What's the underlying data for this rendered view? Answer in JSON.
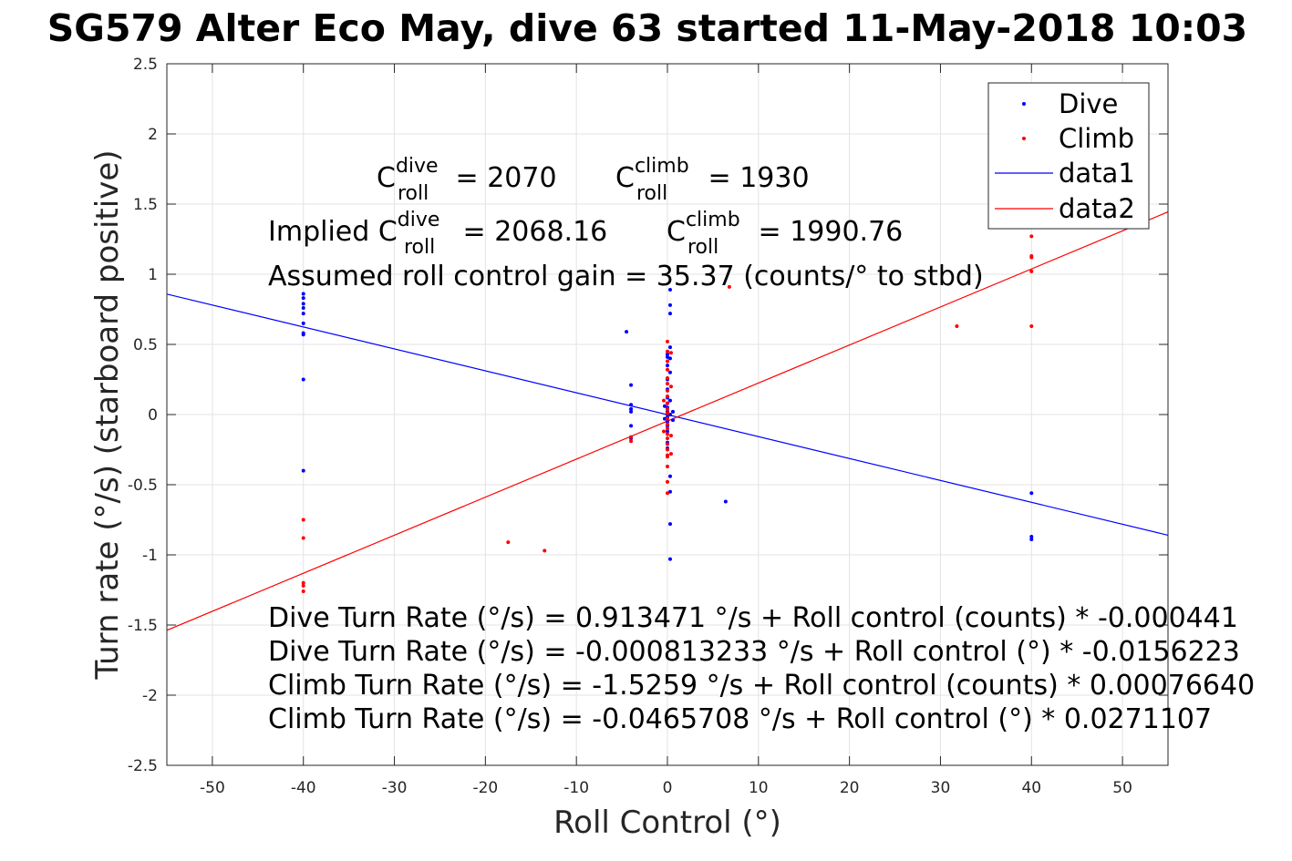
{
  "chart_data": {
    "type": "scatter",
    "title": "SG579 Alter Eco May, dive 63 started 11-May-2018 10:03",
    "xlabel": "Roll Control (°)",
    "ylabel": "Turn rate (°/s) (starboard positive)",
    "xlim": [
      -55,
      55
    ],
    "ylim": [
      -2.5,
      2.5
    ],
    "x_ticks": [
      -50,
      -40,
      -30,
      -20,
      -10,
      0,
      10,
      20,
      30,
      40,
      50
    ],
    "y_ticks": [
      -2.5,
      -2,
      -1.5,
      -1,
      -0.5,
      0,
      0.5,
      1,
      1.5,
      2,
      2.5
    ],
    "x_tick_labels": [
      "-50",
      "-40",
      "-30",
      "-20",
      "-10",
      "0",
      "10",
      "20",
      "30",
      "40",
      "50"
    ],
    "y_tick_labels": [
      "-2.5",
      "-2",
      "-1.5",
      "-1",
      "-0.5",
      "0",
      "0.5",
      "1",
      "1.5",
      "2",
      "2.5"
    ],
    "grid": true,
    "legend_position": "top-right",
    "series": [
      {
        "name": "Dive",
        "kind": "points",
        "color": "#0000ff",
        "points": [
          [
            -40,
            0.86
          ],
          [
            -40,
            0.83
          ],
          [
            -40,
            0.79
          ],
          [
            -40,
            0.76
          ],
          [
            -40,
            0.72
          ],
          [
            -40,
            0.65
          ],
          [
            -40,
            0.58
          ],
          [
            -40,
            0.57
          ],
          [
            -40,
            0.25
          ],
          [
            -40,
            -0.4
          ],
          [
            -4.5,
            0.59
          ],
          [
            -4,
            0.21
          ],
          [
            -4,
            0.07
          ],
          [
            -4,
            0.04
          ],
          [
            -4,
            0.02
          ],
          [
            -4,
            -0.08
          ],
          [
            -4,
            -0.17
          ],
          [
            0,
            0.43
          ],
          [
            0,
            0.41
          ],
          [
            0,
            0.35
          ],
          [
            0,
            0.25
          ],
          [
            0,
            0.18
          ],
          [
            0,
            0.12
          ],
          [
            0,
            0.08
          ],
          [
            0,
            0.05
          ],
          [
            0,
            0.02
          ],
          [
            0,
            0.0
          ],
          [
            0,
            -0.02
          ],
          [
            0,
            -0.05
          ],
          [
            0,
            -0.08
          ],
          [
            0,
            -0.12
          ],
          [
            0,
            -0.2
          ],
          [
            0,
            -0.24
          ],
          [
            0.3,
            0.89
          ],
          [
            0.3,
            0.78
          ],
          [
            0.3,
            0.72
          ],
          [
            0.3,
            0.48
          ],
          [
            0.3,
            0.4
          ],
          [
            0.3,
            0.3
          ],
          [
            0.3,
            0.1
          ],
          [
            0.3,
            0.0
          ],
          [
            0.3,
            -0.44
          ],
          [
            0.3,
            -0.55
          ],
          [
            0.3,
            -0.78
          ],
          [
            0.3,
            -1.03
          ],
          [
            -0.3,
            0.06
          ],
          [
            -0.3,
            -0.03
          ],
          [
            0.6,
            0.02
          ],
          [
            0.6,
            -0.04
          ],
          [
            6.4,
            -0.62
          ],
          [
            40,
            -0.56
          ],
          [
            40,
            -0.87
          ],
          [
            40,
            -0.89
          ]
        ]
      },
      {
        "name": "Climb",
        "kind": "points",
        "color": "#ff0000",
        "points": [
          [
            -40,
            -0.75
          ],
          [
            -40,
            -0.88
          ],
          [
            -40,
            -1.2
          ],
          [
            -40,
            -1.22
          ],
          [
            -40,
            -1.26
          ],
          [
            -17.5,
            -0.91
          ],
          [
            -13.5,
            -0.97
          ],
          [
            -4,
            -0.16
          ],
          [
            -4,
            -0.19
          ],
          [
            0,
            0.52
          ],
          [
            0,
            0.45
          ],
          [
            0,
            0.38
          ],
          [
            0,
            0.32
          ],
          [
            0,
            0.26
          ],
          [
            0,
            0.22
          ],
          [
            0,
            0.17
          ],
          [
            0,
            0.13
          ],
          [
            0,
            0.08
          ],
          [
            0,
            0.04
          ],
          [
            0,
            0.01
          ],
          [
            0,
            -0.03
          ],
          [
            0,
            -0.07
          ],
          [
            0,
            -0.1
          ],
          [
            0,
            -0.14
          ],
          [
            0,
            -0.17
          ],
          [
            0,
            -0.21
          ],
          [
            0,
            -0.25
          ],
          [
            0,
            -0.29
          ],
          [
            0,
            -0.3
          ],
          [
            0,
            -0.37
          ],
          [
            0,
            -0.48
          ],
          [
            0,
            -0.56
          ],
          [
            0.4,
            0.44
          ],
          [
            0.4,
            0.2
          ],
          [
            0.4,
            -0.15
          ],
          [
            0.4,
            -0.28
          ],
          [
            -0.4,
            0.1
          ],
          [
            -0.4,
            -0.12
          ],
          [
            6.8,
            0.91
          ],
          [
            31.8,
            0.63
          ],
          [
            40,
            1.27
          ],
          [
            40,
            1.13
          ],
          [
            40,
            1.12
          ],
          [
            40,
            1.02
          ],
          [
            40,
            0.63
          ]
        ]
      },
      {
        "name": "data1",
        "kind": "line",
        "color": "#0000ff",
        "slope": -0.0156223,
        "intercept": -0.000813233
      },
      {
        "name": "data2",
        "kind": "line",
        "color": "#ff0000",
        "slope": 0.0271107,
        "intercept": -0.0465708
      }
    ],
    "annotations": {
      "c_roll_dive": {
        "pre": "C",
        "sup": "dive",
        "sub": "roll",
        "post": " = 2070"
      },
      "c_roll_climb": {
        "pre": "C",
        "sup": "climb",
        "sub": "roll",
        "post": " = 1930"
      },
      "implied_dive": {
        "pre": "Implied C",
        "sup": "dive",
        "sub": "roll",
        "post": " = 2068.16"
      },
      "implied_climb": {
        "pre": "C",
        "sup": "climb",
        "sub": "roll",
        "post": " = 1990.76"
      },
      "gain": "Assumed roll control gain = 35.37 (counts/° to stbd)",
      "eq1": "Dive Turn Rate (°/s) = 0.913471 °/s + Roll control (counts) * -0.000441",
      "eq2": "Dive Turn Rate (°/s) = -0.000813233 °/s + Roll control (°) * -0.0156223",
      "eq3": "Climb Turn Rate (°/s) = -1.5259 °/s + Roll control (counts) * 0.00076640",
      "eq4": "Climb Turn Rate (°/s) = -0.0465708 °/s + Roll control (°) * 0.0271107"
    }
  }
}
